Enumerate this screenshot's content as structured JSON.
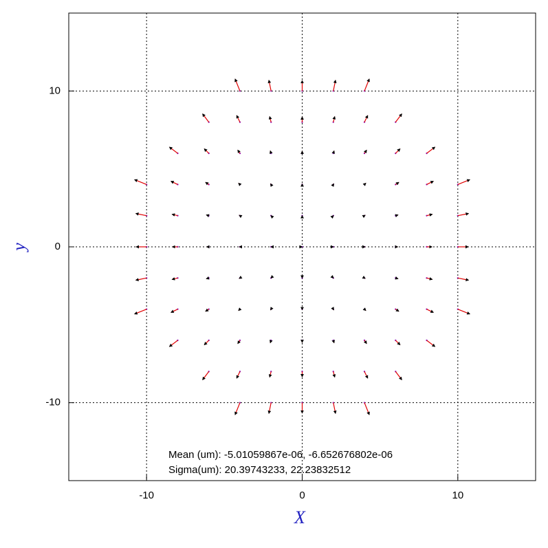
{
  "chart_data": {
    "type": "quiver",
    "xlabel": "X",
    "ylabel": "y",
    "annotations": [
      "Mean (um): -5.01059867e-06, -6.652676802e-06",
      "Sigma(um): 20.39743233, 22.23832512"
    ],
    "xlim": [
      -15,
      15
    ],
    "ylim": [
      -15,
      15
    ],
    "xticks": [
      -10,
      0,
      10
    ],
    "yticks": [
      -10,
      0,
      10
    ],
    "grid": true,
    "color": "#e00000",
    "x": [
      -4,
      -2,
      0,
      2,
      4,
      -6,
      -4,
      -2,
      0,
      2,
      4,
      6,
      -8,
      -6,
      -4,
      -2,
      0,
      2,
      4,
      6,
      8,
      -10,
      -8,
      -6,
      -4,
      -2,
      0,
      2,
      4,
      6,
      8,
      10,
      -10,
      -8,
      -6,
      -4,
      -2,
      0,
      2,
      4,
      6,
      8,
      10,
      -10,
      -8,
      -6,
      -4,
      -2,
      0,
      2,
      4,
      6,
      8,
      10,
      -10,
      -8,
      -6,
      -4,
      -2,
      0,
      2,
      4,
      6,
      8,
      10,
      -10,
      -8,
      -6,
      -4,
      -2,
      0,
      2,
      4,
      6,
      8,
      10,
      -8,
      -6,
      -4,
      -2,
      0,
      2,
      4,
      6,
      8,
      -6,
      -4,
      -2,
      0,
      2,
      4,
      6,
      -4,
      -2,
      0,
      2,
      4
    ],
    "y": [
      10,
      10,
      10,
      10,
      10,
      8,
      8,
      8,
      8,
      8,
      8,
      8,
      6,
      6,
      6,
      6,
      6,
      6,
      6,
      6,
      6,
      4,
      4,
      4,
      4,
      4,
      4,
      4,
      4,
      4,
      4,
      4,
      2,
      2,
      2,
      2,
      2,
      2,
      2,
      2,
      2,
      2,
      2,
      0,
      0,
      0,
      0,
      0,
      0,
      0,
      0,
      0,
      0,
      0,
      -2,
      -2,
      -2,
      -2,
      -2,
      -2,
      -2,
      -2,
      -2,
      -2,
      -2,
      -4,
      -4,
      -4,
      -4,
      -4,
      -4,
      -4,
      -4,
      -4,
      -4,
      -4,
      -6,
      -6,
      -6,
      -6,
      -6,
      -6,
      -6,
      -6,
      -6,
      -8,
      -8,
      -8,
      -8,
      -8,
      -8,
      -8,
      -10,
      -10,
      -10,
      -10,
      -10
    ],
    "u": [
      -0.31,
      -0.14,
      0,
      0.14,
      0.31,
      -0.4,
      -0.21,
      -0.09,
      0,
      0.09,
      0.21,
      0.4,
      -0.53,
      -0.29,
      -0.14,
      -0.05,
      0,
      0.05,
      0.14,
      0.29,
      0.53,
      -0.77,
      -0.43,
      -0.21,
      -0.09,
      -0.03,
      0,
      0.03,
      0.09,
      0.21,
      0.43,
      0.77,
      -0.69,
      -0.36,
      -0.16,
      -0.05,
      -0.01,
      0,
      0.01,
      0.05,
      0.16,
      0.36,
      0.69,
      -0.67,
      -0.34,
      -0.14,
      -0.04,
      -0.01,
      0,
      0.01,
      0.04,
      0.14,
      0.34,
      0.67,
      -0.69,
      -0.36,
      -0.16,
      -0.05,
      -0.01,
      0,
      0.01,
      0.05,
      0.16,
      0.36,
      0.69,
      -0.77,
      -0.43,
      -0.21,
      -0.09,
      -0.03,
      0,
      0.03,
      0.09,
      0.21,
      0.43,
      0.77,
      -0.53,
      -0.29,
      -0.14,
      -0.05,
      0,
      0.05,
      0.14,
      0.29,
      0.53,
      -0.4,
      -0.21,
      -0.09,
      0,
      0.09,
      0.21,
      0.4,
      -0.31,
      -0.14,
      0,
      0.14,
      0.31
    ],
    "v": [
      0.77,
      0.69,
      0.67,
      0.69,
      0.77,
      0.53,
      0.43,
      0.36,
      0.34,
      0.36,
      0.43,
      0.53,
      0.4,
      0.29,
      0.21,
      0.16,
      0.14,
      0.16,
      0.21,
      0.29,
      0.4,
      0.31,
      0.21,
      0.14,
      0.09,
      0.05,
      0.04,
      0.05,
      0.09,
      0.14,
      0.21,
      0.31,
      0.14,
      0.09,
      0.05,
      0.03,
      0.01,
      0.01,
      0.01,
      0.03,
      0.05,
      0.09,
      0.14,
      0,
      0,
      0,
      0,
      0,
      0,
      0,
      0,
      0,
      0,
      0,
      -0.14,
      -0.09,
      -0.05,
      -0.03,
      -0.01,
      -0.01,
      -0.01,
      -0.03,
      -0.05,
      -0.09,
      -0.14,
      -0.31,
      -0.21,
      -0.14,
      -0.09,
      -0.05,
      -0.04,
      -0.05,
      -0.09,
      -0.14,
      -0.21,
      -0.31,
      -0.4,
      -0.29,
      -0.21,
      -0.16,
      -0.14,
      -0.16,
      -0.21,
      -0.29,
      -0.4,
      -0.53,
      -0.43,
      -0.36,
      -0.34,
      -0.36,
      -0.43,
      -0.53,
      -0.77,
      -0.69,
      -0.67,
      -0.69,
      -0.77
    ]
  }
}
